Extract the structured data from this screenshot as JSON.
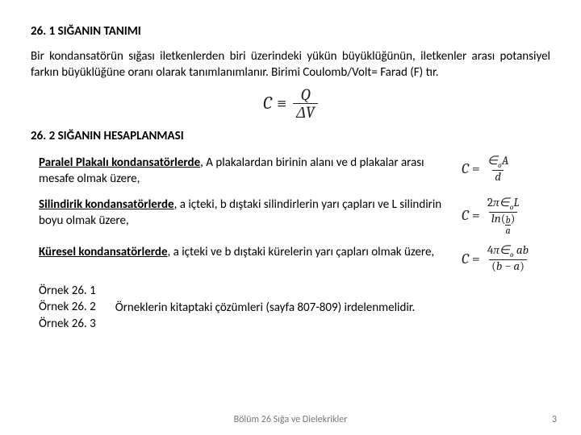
{
  "section1": {
    "heading": "26. 1 SIĞANIN TANIMI",
    "paragraph": "Bir kondansatörün sığası iletkenlerden biri üzerindeki yükün büyüklüğünün, iletkenler arası potansiyel farkın büyüklüğüne oranı olarak tanımlanımlanır. Birimi Coulomb/Volt= Farad (F)  tır.",
    "formula": {
      "lhs": "C",
      "op": "≡",
      "num": "Q",
      "den": "ΔV"
    }
  },
  "section2": {
    "heading": "26. 2 SIĞANIN  HESAPLANMASI",
    "items": [
      {
        "lead": "Paralel Plakalı kondansatörlerde",
        "rest": ", A plakalardan birinin alanı ve d plakalar arası mesafe olmak üzere,",
        "eq": {
          "num_html": "∈<span class='sub'>o</span>A",
          "den_html": "d"
        }
      },
      {
        "lead": "Silindirik kondansatörlerde",
        "rest": ", a içteki, b dıştaki silindirlerin yarı çapları ve L silindirin boyu  olmak üzere,",
        "eq": {
          "num_html": "<span class='norm'>2</span>π∈<span class='sub'>o</span>L",
          "den_html": "ln<span class='norm'>(</span><span class='pfrac'><span class='pn'>b</span><span class='pd'>a</span></span><span class='norm'>)</span>"
        }
      },
      {
        "lead": "Küresel kondansatörlerde",
        "rest": ", a içteki ve b dıştaki kürelerin yarı çapları olmak üzere,",
        "eq": {
          "num_html": "<span class='norm'>4</span>π∈<span class='sub'>o</span>&nbsp;ab",
          "den_html": "<span class='norm'>(</span>b − a<span class='norm'>)</span>"
        }
      }
    ]
  },
  "examples": {
    "list": [
      "Örnek 26. 1",
      "Örnek 26. 2",
      "Örnek 26. 3"
    ],
    "note": "Örneklerin kitaptaki çözümleri (sayfa 807-809)  irdelenmelidir."
  },
  "footer": {
    "text": "Bölüm 26 Sığa ve Dielekrikler",
    "page": "3"
  }
}
